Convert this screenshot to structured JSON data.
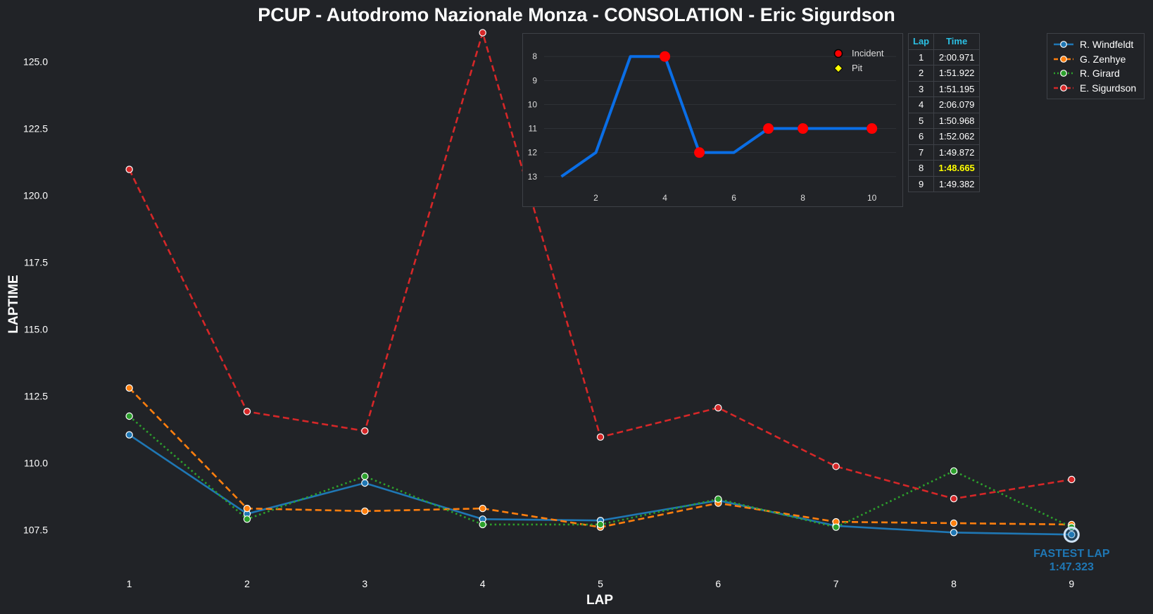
{
  "chart_data": [
    {
      "type": "line",
      "title": "PCUP - Autodromo Nazionale Monza - CONSOLATION - Eric Sigurdson",
      "xlabel": "LAP",
      "ylabel": "LAPTIME",
      "x": [
        1,
        2,
        3,
        4,
        5,
        6,
        7,
        8,
        9
      ],
      "xlim": [
        0.5,
        9.5
      ],
      "ylim": [
        106.25,
        126.25
      ],
      "yticks": [
        107.5,
        110.0,
        112.5,
        115.0,
        117.5,
        120.0,
        122.5,
        125.0
      ],
      "grid": false,
      "legend_position": "top-right",
      "series": [
        {
          "name": "R. Windfeldt",
          "color": "#1f77b4",
          "style": "solid",
          "values": [
            111.05,
            108.1,
            109.25,
            107.9,
            107.85,
            108.6,
            107.65,
            107.4,
            107.323
          ]
        },
        {
          "name": "G. Zenhye",
          "color": "#ff7f0e",
          "style": "dashed",
          "values": [
            112.8,
            108.3,
            108.2,
            108.3,
            107.6,
            108.5,
            107.8,
            107.75,
            107.7
          ]
        },
        {
          "name": "R. Girard",
          "color": "#2ca02c",
          "style": "dotted",
          "values": [
            111.75,
            107.9,
            109.5,
            107.7,
            107.7,
            108.65,
            107.6,
            109.7,
            107.6
          ]
        },
        {
          "name": "E. Sigurdson",
          "color": "#d62728",
          "style": "dashed",
          "values": [
            120.971,
            111.922,
            111.195,
            126.079,
            110.968,
            112.062,
            109.872,
            108.665,
            109.382
          ]
        }
      ],
      "annotation": {
        "x": 9,
        "y": 107.323,
        "line1": "FASTEST LAP",
        "line2": "1:47.323",
        "color": "#1f77b4"
      }
    },
    {
      "type": "line",
      "x": [
        1,
        2,
        3,
        4,
        5,
        6,
        7,
        8,
        9,
        10
      ],
      "values": [
        13,
        12,
        8,
        8,
        12,
        12,
        11,
        11,
        11,
        11
      ],
      "y_inverted": true,
      "ylim": [
        13.3,
        7.7
      ],
      "xlim": [
        0.5,
        10.7
      ],
      "yticks": [
        8,
        9,
        10,
        11,
        12,
        13
      ],
      "xticks": [
        2,
        4,
        6,
        8,
        10
      ],
      "line_color": "#0a6ee6",
      "incidents": [
        4,
        5,
        7,
        8,
        10
      ],
      "incident_color": "#ff0000",
      "legend": [
        {
          "label": "Incident",
          "marker": "circle",
          "color": "#ff0000"
        },
        {
          "label": "Pit",
          "marker": "diamond",
          "color": "#ffff00"
        }
      ]
    }
  ],
  "table": {
    "headers": [
      "Lap",
      "Time"
    ],
    "rows": [
      [
        "1",
        "2:00.971"
      ],
      [
        "2",
        "1:51.922"
      ],
      [
        "3",
        "1:51.195"
      ],
      [
        "4",
        "2:06.079"
      ],
      [
        "5",
        "1:50.968"
      ],
      [
        "6",
        "1:52.062"
      ],
      [
        "7",
        "1:49.872"
      ],
      [
        "8",
        "1:48.665"
      ],
      [
        "9",
        "1:49.382"
      ]
    ],
    "best_row": 7,
    "best_color": "#ffff00"
  }
}
